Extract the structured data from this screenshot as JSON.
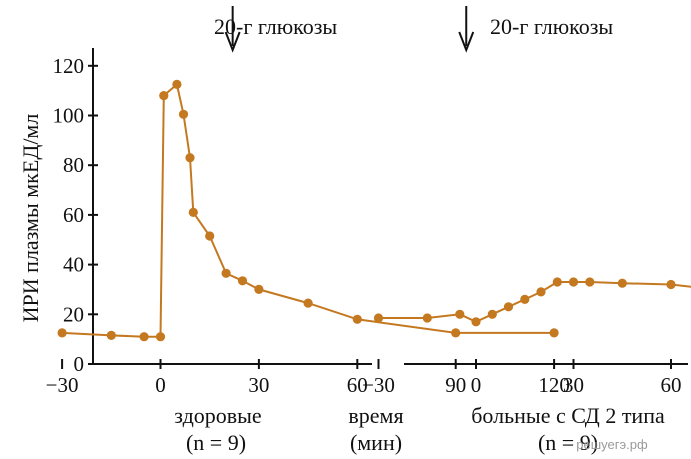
{
  "chart_data": [
    {
      "type": "line",
      "title": "",
      "ylabel": "ИРИ плазмы мкЕД/мл",
      "xlabel": "",
      "xlim": [
        -40,
        125
      ],
      "ylim": [
        0,
        125
      ],
      "xticks": [
        -30,
        0,
        30,
        60,
        90,
        120
      ],
      "xtick_labels": [
        "−30",
        "0",
        "30",
        "60",
        "90",
        "120"
      ],
      "yticks": [
        0,
        20,
        40,
        60,
        80,
        100,
        120
      ],
      "ytick_labels": [
        "0",
        "20",
        "40",
        "60",
        "80",
        "100",
        "120"
      ],
      "annotation": {
        "text": "20-г глюкозы",
        "x": 22
      },
      "caption": [
        "здоровые",
        "(n = 9)"
      ],
      "color": "#c47820",
      "grid": false,
      "series": [
        {
          "x": [
            -30,
            -15,
            -5,
            0,
            1,
            5,
            7,
            9,
            10,
            15,
            20,
            25,
            30,
            45,
            60,
            90,
            120
          ],
          "y": [
            12.5,
            11.5,
            11,
            11,
            108,
            112.5,
            100.5,
            83,
            61,
            51.5,
            36.5,
            33.5,
            30,
            24.5,
            18,
            12.5,
            12.5
          ]
        }
      ]
    },
    {
      "type": "line",
      "title": "",
      "ylabel": "",
      "xlabel": "",
      "xlim": [
        -40,
        125
      ],
      "ylim": [
        0,
        125
      ],
      "xticks": [
        -30,
        0,
        30,
        60,
        90,
        120
      ],
      "xtick_labels": [
        "−30",
        "0",
        "30",
        "60",
        "90",
        "120"
      ],
      "annotation": {
        "text": "20-г глюкозы",
        "x": -3
      },
      "caption": [
        "больные с СД 2 типа",
        "(n = 9)"
      ],
      "color": "#c47820",
      "grid": false,
      "series": [
        {
          "x": [
            -30,
            -15,
            -5,
            0,
            5,
            10,
            15,
            20,
            25,
            30,
            35,
            45,
            60,
            90,
            120
          ],
          "y": [
            18.5,
            18.5,
            20,
            17,
            20,
            23,
            26,
            29,
            33,
            33,
            33,
            32.5,
            32,
            27.5,
            23.5
          ]
        }
      ]
    }
  ],
  "middle_caption": [
    "время",
    "(мин)"
  ],
  "watermark": "решуегэ.рф"
}
